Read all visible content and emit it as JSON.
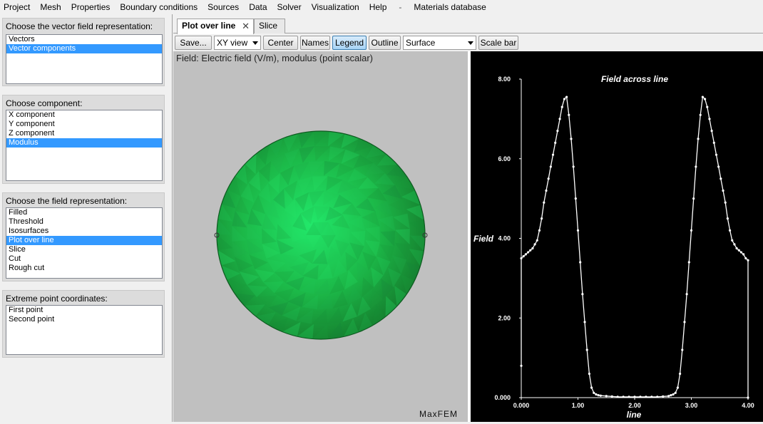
{
  "menu": [
    "Project",
    "Mesh",
    "Properties",
    "Boundary conditions",
    "Sources",
    "Data",
    "Solver",
    "Visualization",
    "Help",
    "-",
    "Materials database"
  ],
  "panels": [
    {
      "title": "Choose the vector field representation:",
      "items": [
        "Vectors",
        "Vector components"
      ],
      "selected": 1
    },
    {
      "title": "Choose component:",
      "items": [
        "X component",
        "Y component",
        "Z component",
        "Modulus"
      ],
      "selected": 3
    },
    {
      "title": "Choose the field representation:",
      "items": [
        "Filled",
        "Threshold",
        "Isosurfaces",
        "Plot over line",
        "Slice",
        "Cut",
        "Rough cut"
      ],
      "selected": 3
    },
    {
      "title": "Extreme point coordinates:",
      "items": [
        "First point",
        "Second point"
      ],
      "selected": -1
    }
  ],
  "tabs": [
    {
      "label": "Plot over line",
      "close": "✕"
    },
    {
      "label": "Slice"
    }
  ],
  "toolbar": {
    "save": "Save...",
    "view_select": "XY view",
    "center": "Center",
    "names": "Names",
    "legend": "Legend",
    "outline": "Outline",
    "rep_select": "Surface",
    "scale_bar": "Scale bar"
  },
  "view": {
    "field_label": "Field: Electric field (V/m), modulus (point scalar)",
    "watermark": "MaxFEM"
  },
  "colors": {
    "selection": "#3399ff",
    "sphere_light": "#22e86a",
    "sphere_dark": "#157a2c",
    "legend_pressed": "#a7d3f5"
  },
  "chart_data": {
    "type": "line",
    "title": "Field across line",
    "xlabel": "line",
    "ylabel": "Field",
    "xlim": [
      0,
      4
    ],
    "ylim": [
      0,
      8
    ],
    "xticks": [
      "0.000",
      "1.00",
      "2.00",
      "3.00",
      "4.00"
    ],
    "yticks": [
      "0.000",
      "2.00",
      "4.00",
      "6.00",
      "8.00"
    ],
    "x": [
      0.0,
      0.0,
      0.04,
      0.08,
      0.12,
      0.16,
      0.2,
      0.24,
      0.28,
      0.32,
      0.36,
      0.4,
      0.44,
      0.48,
      0.52,
      0.56,
      0.6,
      0.64,
      0.68,
      0.72,
      0.76,
      0.8,
      0.84,
      0.88,
      0.92,
      0.96,
      1.0,
      1.04,
      1.08,
      1.12,
      1.16,
      1.2,
      1.24,
      1.28,
      1.32,
      1.36,
      1.4,
      1.5,
      1.6,
      1.7,
      1.8,
      1.9,
      2.0,
      2.1,
      2.2,
      2.3,
      2.4,
      2.5,
      2.6,
      2.64,
      2.68,
      2.72,
      2.76,
      2.8,
      2.84,
      2.88,
      2.92,
      2.96,
      3.0,
      3.04,
      3.08,
      3.12,
      3.16,
      3.2,
      3.24,
      3.28,
      3.32,
      3.36,
      3.4,
      3.44,
      3.48,
      3.52,
      3.56,
      3.6,
      3.64,
      3.68,
      3.72,
      3.76,
      3.8,
      3.84,
      3.88,
      3.92,
      3.96,
      4.0,
      4.0
    ],
    "values": [
      0.8,
      3.5,
      3.55,
      3.6,
      3.65,
      3.7,
      3.75,
      3.85,
      3.95,
      4.2,
      4.5,
      4.9,
      5.2,
      5.5,
      5.8,
      6.1,
      6.4,
      6.7,
      7.0,
      7.3,
      7.5,
      7.55,
      7.1,
      6.5,
      5.8,
      5.0,
      4.2,
      3.4,
      2.6,
      1.9,
      1.2,
      0.6,
      0.25,
      0.12,
      0.08,
      0.06,
      0.05,
      0.04,
      0.03,
      0.02,
      0.02,
      0.02,
      0.02,
      0.02,
      0.02,
      0.02,
      0.02,
      0.03,
      0.04,
      0.06,
      0.08,
      0.12,
      0.25,
      0.6,
      1.2,
      1.9,
      2.6,
      3.4,
      4.2,
      5.0,
      5.8,
      6.5,
      7.1,
      7.55,
      7.5,
      7.3,
      7.0,
      6.7,
      6.4,
      6.1,
      5.8,
      5.5,
      5.2,
      4.9,
      4.5,
      4.2,
      3.95,
      3.85,
      3.75,
      3.7,
      3.65,
      3.6,
      3.5,
      3.45,
      0.0
    ]
  }
}
